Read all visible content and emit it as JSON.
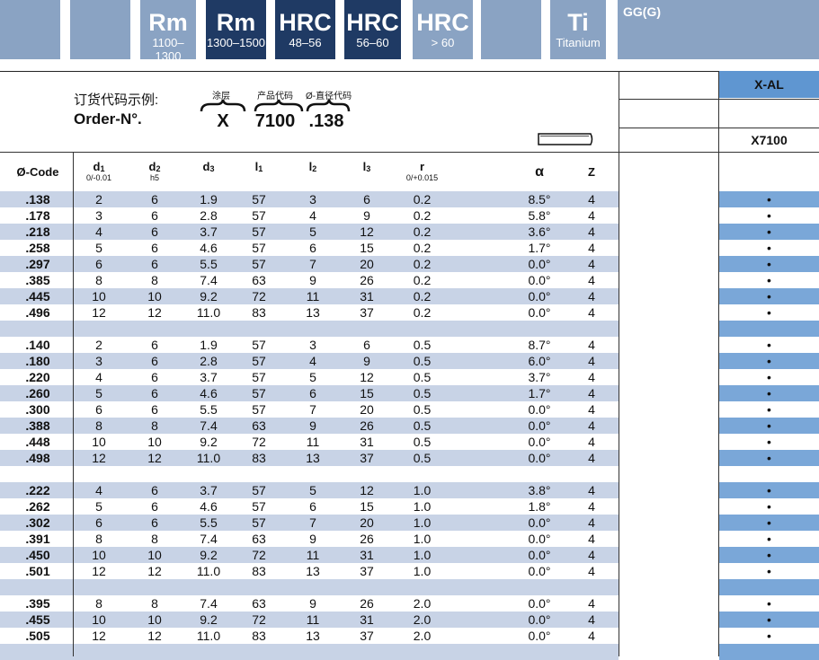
{
  "header_tiles": [
    {
      "big": "",
      "small": "",
      "style": "light"
    },
    {
      "big": "",
      "small": "",
      "style": "light"
    },
    {
      "big": "Rm",
      "small": "1100–1300",
      "style": "light"
    },
    {
      "big": "Rm",
      "small": "1300–1500",
      "style": "dark"
    },
    {
      "big": "HRC",
      "small": "48–56",
      "style": "dark"
    },
    {
      "big": "HRC",
      "small": "56–60",
      "style": "dark"
    },
    {
      "big": "HRC",
      "small": "> 60",
      "style": "light"
    },
    {
      "big": "",
      "small": "",
      "style": "light"
    },
    {
      "big": "Ti",
      "small": "Titanium",
      "style": "light"
    },
    {
      "big": "GG(G)",
      "small": "",
      "style": "light"
    }
  ],
  "order": {
    "label_cn": "订货代码示例:",
    "label_en": "Order-N°.",
    "parts": [
      {
        "caption": "涂层",
        "code": "X"
      },
      {
        "caption": "产品代码",
        "code": "7100"
      },
      {
        "caption": "Ø-直径代码",
        "code": ".138"
      }
    ]
  },
  "columns": [
    {
      "key": "code",
      "label": "Ø-Code",
      "sub": ""
    },
    {
      "key": "d1",
      "label": "d",
      "idx": "1",
      "sub": "0/-0.01"
    },
    {
      "key": "d2",
      "label": "d",
      "idx": "2",
      "sub": "h5"
    },
    {
      "key": "d3",
      "label": "d",
      "idx": "3",
      "sub": ""
    },
    {
      "key": "l1",
      "label": "l",
      "idx": "1",
      "sub": ""
    },
    {
      "key": "l2",
      "label": "l",
      "idx": "2",
      "sub": ""
    },
    {
      "key": "l3",
      "label": "l",
      "idx": "3",
      "sub": ""
    },
    {
      "key": "r",
      "label": "r",
      "sub": "0/+0.015"
    },
    {
      "key": "alpha",
      "label": "α",
      "sub": ""
    },
    {
      "key": "z",
      "label": "Z",
      "sub": ""
    }
  ],
  "right": {
    "coating": "X-AL",
    "product": "X7100",
    "mark": "•"
  },
  "groups": [
    [
      [
        ".138",
        "2",
        "6",
        "1.9",
        "57",
        "3",
        "6",
        "0.2",
        "8.5°",
        "4"
      ],
      [
        ".178",
        "3",
        "6",
        "2.8",
        "57",
        "4",
        "9",
        "0.2",
        "5.8°",
        "4"
      ],
      [
        ".218",
        "4",
        "6",
        "3.7",
        "57",
        "5",
        "12",
        "0.2",
        "3.6°",
        "4"
      ],
      [
        ".258",
        "5",
        "6",
        "4.6",
        "57",
        "6",
        "15",
        "0.2",
        "1.7°",
        "4"
      ],
      [
        ".297",
        "6",
        "6",
        "5.5",
        "57",
        "7",
        "20",
        "0.2",
        "0.0°",
        "4"
      ],
      [
        ".385",
        "8",
        "8",
        "7.4",
        "63",
        "9",
        "26",
        "0.2",
        "0.0°",
        "4"
      ],
      [
        ".445",
        "10",
        "10",
        "9.2",
        "72",
        "11",
        "31",
        "0.2",
        "0.0°",
        "4"
      ],
      [
        ".496",
        "12",
        "12",
        "11.0",
        "83",
        "13",
        "37",
        "0.2",
        "0.0°",
        "4"
      ]
    ],
    [
      [
        ".140",
        "2",
        "6",
        "1.9",
        "57",
        "3",
        "6",
        "0.5",
        "8.7°",
        "4"
      ],
      [
        ".180",
        "3",
        "6",
        "2.8",
        "57",
        "4",
        "9",
        "0.5",
        "6.0°",
        "4"
      ],
      [
        ".220",
        "4",
        "6",
        "3.7",
        "57",
        "5",
        "12",
        "0.5",
        "3.7°",
        "4"
      ],
      [
        ".260",
        "5",
        "6",
        "4.6",
        "57",
        "6",
        "15",
        "0.5",
        "1.7°",
        "4"
      ],
      [
        ".300",
        "6",
        "6",
        "5.5",
        "57",
        "7",
        "20",
        "0.5",
        "0.0°",
        "4"
      ],
      [
        ".388",
        "8",
        "8",
        "7.4",
        "63",
        "9",
        "26",
        "0.5",
        "0.0°",
        "4"
      ],
      [
        ".448",
        "10",
        "10",
        "9.2",
        "72",
        "11",
        "31",
        "0.5",
        "0.0°",
        "4"
      ],
      [
        ".498",
        "12",
        "12",
        "11.0",
        "83",
        "13",
        "37",
        "0.5",
        "0.0°",
        "4"
      ]
    ],
    [
      [
        ".222",
        "4",
        "6",
        "3.7",
        "57",
        "5",
        "12",
        "1.0",
        "3.8°",
        "4"
      ],
      [
        ".262",
        "5",
        "6",
        "4.6",
        "57",
        "6",
        "15",
        "1.0",
        "1.8°",
        "4"
      ],
      [
        ".302",
        "6",
        "6",
        "5.5",
        "57",
        "7",
        "20",
        "1.0",
        "0.0°",
        "4"
      ],
      [
        ".391",
        "8",
        "8",
        "7.4",
        "63",
        "9",
        "26",
        "1.0",
        "0.0°",
        "4"
      ],
      [
        ".450",
        "10",
        "10",
        "9.2",
        "72",
        "11",
        "31",
        "1.0",
        "0.0°",
        "4"
      ],
      [
        ".501",
        "12",
        "12",
        "11.0",
        "83",
        "13",
        "37",
        "1.0",
        "0.0°",
        "4"
      ]
    ],
    [
      [
        ".395",
        "8",
        "8",
        "7.4",
        "63",
        "9",
        "26",
        "2.0",
        "0.0°",
        "4"
      ],
      [
        ".455",
        "10",
        "10",
        "9.2",
        "72",
        "11",
        "31",
        "2.0",
        "0.0°",
        "4"
      ],
      [
        ".505",
        "12",
        "12",
        "11.0",
        "83",
        "13",
        "37",
        "2.0",
        "0.0°",
        "4"
      ]
    ]
  ]
}
